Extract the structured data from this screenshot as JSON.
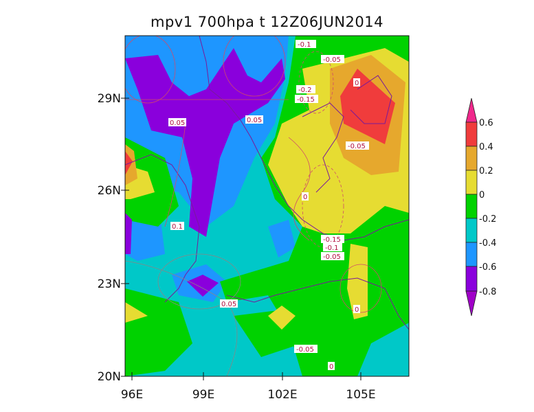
{
  "title": "mpv1  700hpa  t  12Z06JUN2014",
  "axes": {
    "x_ticks": [
      "96E",
      "99E",
      "102E",
      "105E"
    ],
    "y_ticks": [
      "29N",
      "26N",
      "23N",
      "20N"
    ]
  },
  "colorbar": {
    "levels": [
      "0.6",
      "0.4",
      "0.2",
      "0",
      "-0.2",
      "-0.4",
      "-0.6",
      "-0.8"
    ],
    "colors": [
      "#f0288c",
      "#f03c3c",
      "#e6a82d",
      "#e6dc32",
      "#00d200",
      "#00c8c8",
      "#1e96ff",
      "#8a00dc",
      "#a000c8"
    ]
  },
  "contour_labels": [
    "-0.1",
    "-0.05",
    "0",
    "-0.2",
    "-0.15",
    "0.05",
    "0.05",
    "-0.05",
    "0",
    "0.1",
    "-0.15",
    "-0.1",
    "-0.05",
    "0.05",
    "0",
    "-0.05",
    "0"
  ]
}
